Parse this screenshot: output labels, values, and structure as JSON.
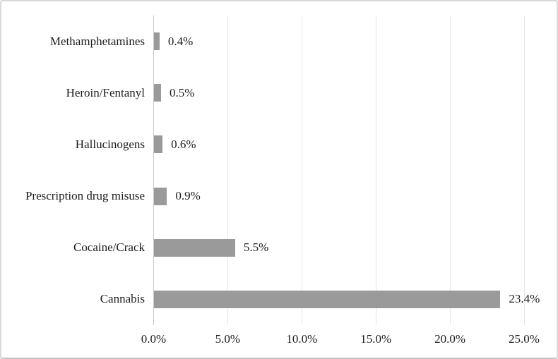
{
  "chart": {
    "bar_color": "#9a9a9a",
    "gridline_color": "#e6e6e6",
    "axis_line_color": "#c9c9c9",
    "text_color": "#1c1c1c",
    "background_color": "#ffffff",
    "border_color": "#d9d9d9"
  },
  "chart_data": {
    "type": "bar",
    "orientation": "horizontal",
    "title": "",
    "xlabel": "",
    "ylabel": "",
    "grid": true,
    "legend": false,
    "xlim": [
      0,
      25
    ],
    "categories": [
      "Methamphetamines",
      "Heroin/Fentanyl",
      "Hallucinogens",
      "Prescription drug misuse",
      "Cocaine/Crack",
      "Cannabis"
    ],
    "values": [
      0.4,
      0.5,
      0.6,
      0.9,
      5.5,
      23.4
    ],
    "data_labels": [
      "0.4%",
      "0.5%",
      "0.6%",
      "0.9%",
      "5.5%",
      "23.4%"
    ],
    "x_tick_values": [
      0,
      5,
      10,
      15,
      20,
      25
    ],
    "x_tick_labels": [
      "0.0%",
      "5.0%",
      "10.0%",
      "15.0%",
      "20.0%",
      "25.0%"
    ]
  }
}
